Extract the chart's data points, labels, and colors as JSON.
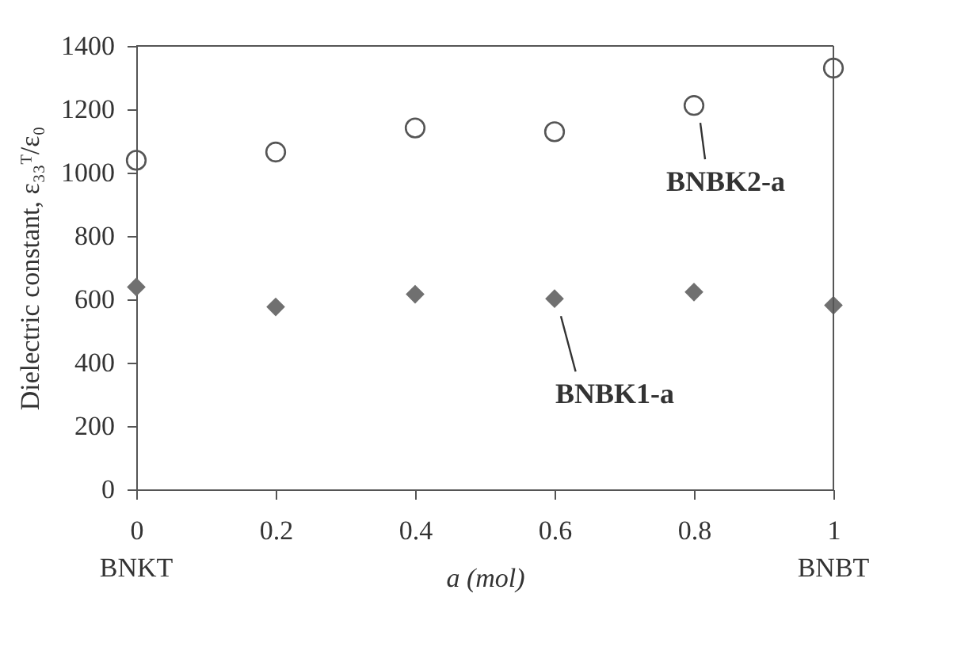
{
  "chart_data": {
    "type": "scatter",
    "xlabel": "a (mol)",
    "ylabel": "Dielectric constant, ε₃₃ᵀ/ε₀",
    "x": [
      0,
      0.2,
      0.4,
      0.6,
      0.8,
      1
    ],
    "series": [
      {
        "name": "BNBK2-a",
        "color": "#555555",
        "marker": "circle",
        "values": [
          1039,
          1065,
          1141,
          1129,
          1212,
          1330
        ]
      },
      {
        "name": "BNBK1-a",
        "color": "#707070",
        "marker": "diamond",
        "values": [
          639,
          576,
          616,
          602,
          623,
          581
        ]
      }
    ],
    "xlim": [
      0,
      1
    ],
    "ylim": [
      0,
      1400
    ],
    "xticks": [
      0,
      0.2,
      0.4,
      0.6,
      0.8,
      1
    ],
    "yticks": [
      0,
      200,
      400,
      600,
      800,
      1000,
      1200,
      1400
    ],
    "annotations": [
      "BNKT",
      "BNBT"
    ],
    "grid": false
  }
}
